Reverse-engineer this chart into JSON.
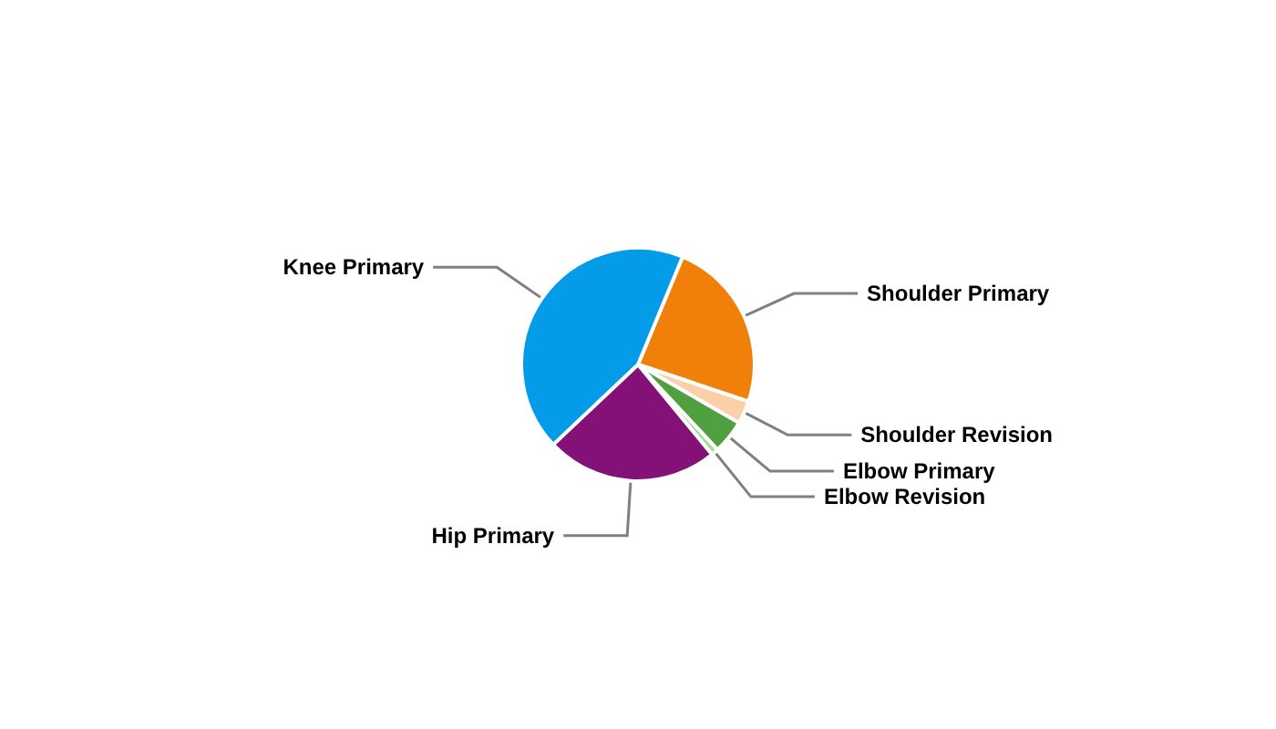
{
  "chart_data": {
    "type": "pie",
    "categories": [
      "Shoulder Primary",
      "Shoulder Revision",
      "Elbow Primary",
      "Elbow Revision",
      "Hip Primary",
      "Knee Primary"
    ],
    "values": [
      23.9,
      3.2,
      4.7,
      1.0,
      23.9,
      43.3
    ],
    "colors": [
      "#f0800a",
      "#fbd0a8",
      "#50a040",
      "#a0e090",
      "#841178",
      "#049be8"
    ],
    "legend": false
  }
}
